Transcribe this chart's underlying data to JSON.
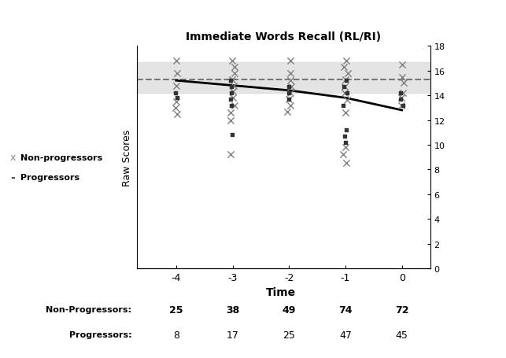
{
  "title": "Immediate Words Recall (RL/RI)",
  "xlabel": "Time",
  "ylabel": "Raw Scores",
  "x_ticks": [
    -4,
    -3,
    -2,
    -1,
    0
  ],
  "x_tick_labels": [
    "-4",
    "-3",
    "-2",
    "-1",
    "0"
  ],
  "right_yticks": [
    0,
    2,
    4,
    6,
    8,
    10,
    12,
    14,
    16,
    18
  ],
  "ylim": [
    0,
    18
  ],
  "xlim": [
    -4.7,
    0.5
  ],
  "non_prog_line_x": [
    -4,
    -3,
    -2,
    -1,
    0
  ],
  "non_prog_line_y": [
    15.2,
    14.8,
    14.4,
    13.8,
    12.8
  ],
  "prog_line_y": 15.3,
  "prog_dashed_color": "#777777",
  "non_prog_line_color": "#000000",
  "shaded_band_lower": 14.2,
  "shaded_band_upper": 16.7,
  "non_prog_scatter": {
    "-4": [
      16.8,
      15.8,
      14.8,
      13.5,
      13.0,
      12.5
    ],
    "-3": [
      16.8,
      16.3,
      15.8,
      15.3,
      14.8,
      14.3,
      13.8,
      13.2,
      12.6,
      12.0,
      9.2
    ],
    "-2": [
      16.8,
      15.8,
      15.2,
      14.7,
      14.2,
      13.7,
      13.2,
      12.7
    ],
    "-1": [
      16.8,
      16.3,
      15.8,
      15.3,
      14.7,
      14.2,
      13.6,
      12.6,
      9.8,
      9.2,
      8.5
    ],
    "0": [
      16.5,
      15.5,
      15.0,
      14.2,
      13.8,
      13.2
    ]
  },
  "prog_scatter": {
    "-4": [
      14.2,
      13.8
    ],
    "-3": [
      15.2,
      14.7,
      14.2,
      13.7,
      13.2,
      10.8
    ],
    "-2": [
      14.7,
      14.2,
      13.7
    ],
    "-1": [
      15.2,
      14.7,
      14.2,
      13.2,
      11.2,
      10.7,
      10.2
    ],
    "0": [
      14.2,
      13.7,
      13.2
    ]
  },
  "n_non_prog": [
    25,
    38,
    49,
    74,
    72
  ],
  "n_prog": [
    8,
    17,
    25,
    47,
    45
  ],
  "background_color": "#ffffff"
}
